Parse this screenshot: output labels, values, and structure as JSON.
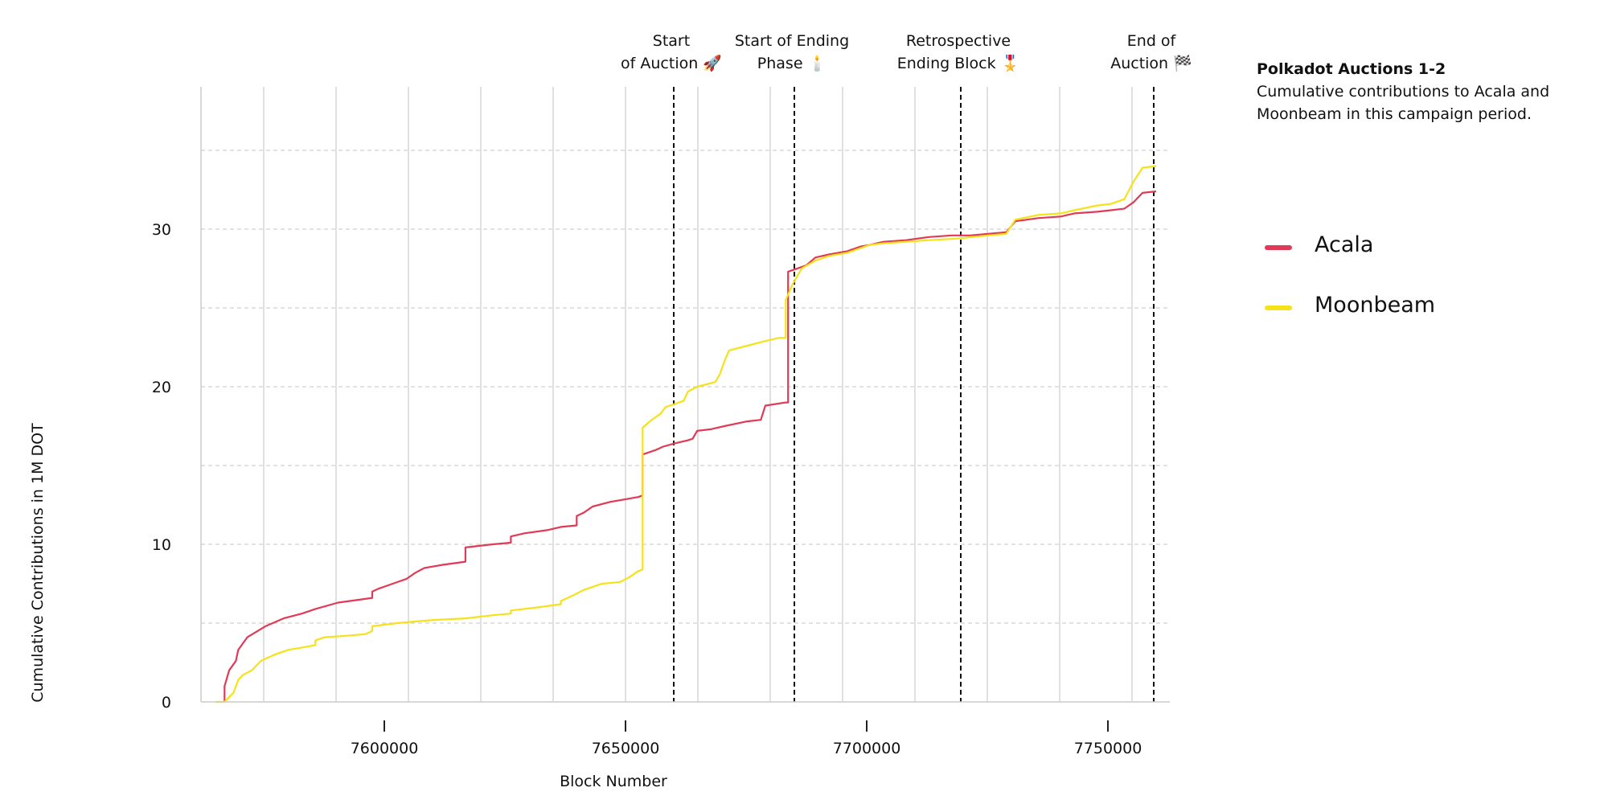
{
  "chart_data": {
    "type": "line",
    "title": "Polkadot Auctions 1-2",
    "subtitle": "Cumulative contributions to Acala and Moonbeam in this campaign period.",
    "xlabel": "Block Number",
    "ylabel": "Cumulative Contributions in 1M DOT",
    "xlim": [
      7565000,
      7762000
    ],
    "ylim": [
      0,
      39
    ],
    "xticks": [
      7600000,
      7650000,
      7700000,
      7750000
    ],
    "yticks": [
      0,
      10,
      20,
      30
    ],
    "grid": true,
    "legend_position": "right",
    "annotations": [
      {
        "x": 7660000,
        "line1": "Start",
        "line2": "of Auction 🚀"
      },
      {
        "x": 7685000,
        "line1": "Start of Ending",
        "line2": "Phase 🕯️"
      },
      {
        "x": 7719500,
        "line1": "Retrospective",
        "line2": "Ending Block 🎖️"
      },
      {
        "x": 7759500,
        "line1": "End of",
        "line2": "Auction 🏁"
      }
    ],
    "series": [
      {
        "name": "Acala",
        "color": "#e03a56",
        "points": [
          [
            7571000,
            0
          ],
          [
            7571000,
            1.0
          ],
          [
            7572000,
            2.0
          ],
          [
            7573500,
            2.6
          ],
          [
            7574000,
            3.3
          ],
          [
            7575000,
            3.7
          ],
          [
            7576000,
            4.1
          ],
          [
            7580000,
            4.8
          ],
          [
            7584000,
            5.3
          ],
          [
            7588000,
            5.6
          ],
          [
            7591000,
            5.9
          ],
          [
            7596000,
            6.3
          ],
          [
            7601000,
            6.5
          ],
          [
            7603500,
            6.6
          ],
          [
            7603500,
            7.0
          ],
          [
            7605000,
            7.2
          ],
          [
            7607000,
            7.4
          ],
          [
            7609000,
            7.6
          ],
          [
            7611000,
            7.8
          ],
          [
            7613000,
            8.2
          ],
          [
            7615000,
            8.5
          ],
          [
            7619000,
            8.7
          ],
          [
            7624000,
            8.9
          ],
          [
            7624000,
            9.8
          ],
          [
            7630000,
            10.0
          ],
          [
            7634000,
            10.1
          ],
          [
            7634000,
            10.5
          ],
          [
            7637000,
            10.7
          ],
          [
            7642000,
            10.9
          ],
          [
            7645000,
            11.1
          ],
          [
            7648500,
            11.2
          ],
          [
            7648500,
            11.8
          ],
          [
            7650000,
            12.0
          ],
          [
            7652000,
            12.4
          ],
          [
            7656000,
            12.7
          ],
          [
            7660000,
            12.9
          ],
          [
            7662000,
            13.0
          ],
          [
            7663000,
            13.1
          ],
          [
            7663000,
            15.7
          ],
          [
            7666000,
            16.0
          ],
          [
            7667500,
            16.2
          ],
          [
            7670000,
            16.4
          ],
          [
            7673000,
            16.6
          ],
          [
            7674000,
            16.7
          ],
          [
            7675000,
            17.2
          ],
          [
            7678000,
            17.3
          ],
          [
            7681000,
            17.5
          ],
          [
            7686000,
            17.8
          ],
          [
            7689000,
            17.9
          ],
          [
            7690000,
            18.8
          ],
          [
            7694500,
            19.0
          ],
          [
            7695000,
            19.0
          ],
          [
            7695000,
            27.3
          ],
          [
            7699000,
            27.7
          ],
          [
            7701000,
            28.2
          ],
          [
            7704000,
            28.4
          ],
          [
            7708000,
            28.6
          ],
          [
            7711000,
            28.9
          ],
          [
            7713000,
            29.0
          ],
          [
            7716000,
            29.2
          ],
          [
            7721000,
            29.3
          ],
          [
            7726000,
            29.5
          ],
          [
            7731000,
            29.6
          ],
          [
            7735000,
            29.6
          ],
          [
            7739000,
            29.7
          ],
          [
            7743000,
            29.8
          ],
          [
            7745000,
            30.5
          ],
          [
            7750000,
            30.7
          ],
          [
            7755000,
            30.8
          ],
          [
            7758000,
            31.0
          ],
          [
            7763000,
            31.1
          ],
          [
            7766000,
            31.2
          ],
          [
            7769000,
            31.3
          ],
          [
            7771000,
            31.7
          ],
          [
            7773000,
            32.3
          ],
          [
            7776000,
            32.4
          ]
        ]
      },
      {
        "name": "Moonbeam",
        "color": "#f5e21a",
        "points": [
          [
            7569000,
            0
          ],
          [
            7571000,
            0
          ],
          [
            7573000,
            0.6
          ],
          [
            7574000,
            1.4
          ],
          [
            7575000,
            1.7
          ],
          [
            7577000,
            2.0
          ],
          [
            7579000,
            2.6
          ],
          [
            7582000,
            3.0
          ],
          [
            7585000,
            3.3
          ],
          [
            7589000,
            3.5
          ],
          [
            7591000,
            3.6
          ],
          [
            7591000,
            3.9
          ],
          [
            7593000,
            4.1
          ],
          [
            7598000,
            4.2
          ],
          [
            7602000,
            4.3
          ],
          [
            7603500,
            4.5
          ],
          [
            7603500,
            4.8
          ],
          [
            7609000,
            5.0
          ],
          [
            7613000,
            5.1
          ],
          [
            7617000,
            5.2
          ],
          [
            7624000,
            5.3
          ],
          [
            7630000,
            5.5
          ],
          [
            7634000,
            5.6
          ],
          [
            7634000,
            5.8
          ],
          [
            7640000,
            6.0
          ],
          [
            7645000,
            6.2
          ],
          [
            7645000,
            6.4
          ],
          [
            7648000,
            6.8
          ],
          [
            7650000,
            7.1
          ],
          [
            7651000,
            7.2
          ],
          [
            7654000,
            7.5
          ],
          [
            7658000,
            7.6
          ],
          [
            7660000,
            7.9
          ],
          [
            7662000,
            8.3
          ],
          [
            7663000,
            8.4
          ],
          [
            7663000,
            17.4
          ],
          [
            7665000,
            17.9
          ],
          [
            7667000,
            18.3
          ],
          [
            7668000,
            18.7
          ],
          [
            7672000,
            19.1
          ],
          [
            7673000,
            19.7
          ],
          [
            7675000,
            20.0
          ],
          [
            7679000,
            20.3
          ],
          [
            7680000,
            20.8
          ],
          [
            7681000,
            21.6
          ],
          [
            7682000,
            22.3
          ],
          [
            7686000,
            22.6
          ],
          [
            7690000,
            22.9
          ],
          [
            7693000,
            23.1
          ],
          [
            7694500,
            23.1
          ],
          [
            7694500,
            25.5
          ],
          [
            7696000,
            26.5
          ],
          [
            7698000,
            27.5
          ],
          [
            7701000,
            28.0
          ],
          [
            7704000,
            28.3
          ],
          [
            7708000,
            28.5
          ],
          [
            7711000,
            28.8
          ],
          [
            7713000,
            29.0
          ],
          [
            7716000,
            29.1
          ],
          [
            7721000,
            29.2
          ],
          [
            7726000,
            29.3
          ],
          [
            7732000,
            29.4
          ],
          [
            7739000,
            29.6
          ],
          [
            7743000,
            29.7
          ],
          [
            7745000,
            30.6
          ],
          [
            7750000,
            30.9
          ],
          [
            7755000,
            31.0
          ],
          [
            7758000,
            31.2
          ],
          [
            7763000,
            31.5
          ],
          [
            7766000,
            31.6
          ],
          [
            7769000,
            31.9
          ],
          [
            7771000,
            33.0
          ],
          [
            7773000,
            33.9
          ],
          [
            7776000,
            34.0
          ]
        ]
      }
    ]
  }
}
